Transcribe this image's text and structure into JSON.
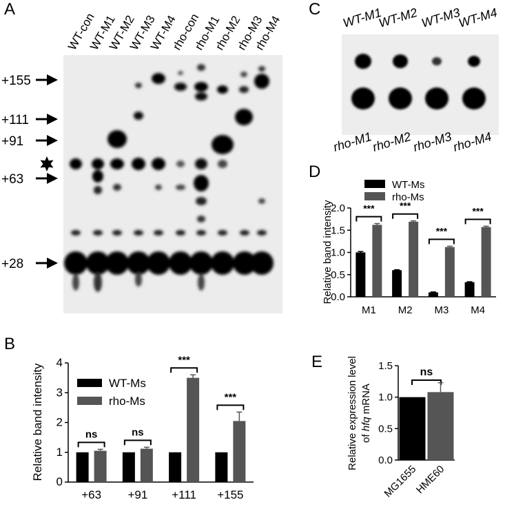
{
  "panels": {
    "a": {
      "letter": "A",
      "lane_labels": [
        "WT-con",
        "WT-M1",
        "WT-M2",
        "WT-M3",
        "WT-M4",
        "rho-con",
        "rho-M1",
        "rho-M2",
        "rho-M3",
        "rho-M4"
      ],
      "markers": [
        "+155",
        "+111",
        "+91",
        "+63",
        "+28"
      ],
      "star_icon": "star-icon"
    },
    "b": {
      "letter": "B",
      "chart_data": {
        "type": "bar",
        "categories": [
          "+63",
          "+91",
          "+111",
          "+155"
        ],
        "series": [
          {
            "name": "WT-Ms",
            "values": [
              1,
              1,
              1,
              1
            ],
            "errors": [
              0,
              0,
              0,
              0
            ],
            "color": "#000000"
          },
          {
            "name": "rho-Ms",
            "values": [
              1.05,
              1.12,
              3.5,
              2.05
            ],
            "errors": [
              0.05,
              0.05,
              0.1,
              0.3
            ],
            "color": "#555555"
          }
        ],
        "significance": [
          "ns",
          "ns",
          "***",
          "***"
        ],
        "ylabel": "Relative band intensity",
        "ylim": [
          0,
          4
        ],
        "yticks": [
          "0",
          "1",
          "2",
          "3",
          "4"
        ],
        "legend": "top-left"
      }
    },
    "c": {
      "letter": "C",
      "top_labels": [
        "WT-M1",
        "WT-M2",
        "WT-M3",
        "WT-M4"
      ],
      "bottom_labels": [
        "rho-M1",
        "rho-M2",
        "rho-M3",
        "rho-M4"
      ]
    },
    "d": {
      "letter": "D",
      "chart_data": {
        "type": "bar",
        "categories": [
          "M1",
          "M2",
          "M3",
          "M4"
        ],
        "series": [
          {
            "name": "WT-Ms",
            "values": [
              1.0,
              0.6,
              0.1,
              0.33
            ],
            "errors": [
              0.02,
              0.01,
              0.01,
              0.01
            ],
            "color": "#000000"
          },
          {
            "name": "rho-Ms",
            "values": [
              1.62,
              1.69,
              1.12,
              1.57
            ],
            "errors": [
              0.03,
              0.02,
              0.02,
              0.02
            ],
            "color": "#555555"
          }
        ],
        "significance": [
          "***",
          "***",
          "***",
          "***"
        ],
        "ylabel": "Relative band intensity",
        "ylim": [
          0,
          2.0
        ],
        "yticks": [
          "0.0",
          "0.5",
          "1.0",
          "1.5",
          "2.0"
        ],
        "legend": "top-left"
      }
    },
    "e": {
      "letter": "E",
      "chart_data": {
        "type": "bar",
        "categories": [
          "MG1655",
          "HME60"
        ],
        "series": [
          {
            "name": "",
            "values": [
              1.0,
              1.08
            ],
            "errors": [
              0,
              0.15
            ],
            "colors": [
              "#000000",
              "#555555"
            ]
          }
        ],
        "significance": [
          "ns"
        ],
        "ylabel_line1": "Relative expression level",
        "ylabel_line2_prefix": "of ",
        "ylabel_line2_italic": "hfq",
        "ylabel_line2_suffix": " mRNA",
        "ylim": [
          0,
          1.5
        ],
        "yticks": [
          "0.0",
          "0.5",
          "1.0",
          "1.5"
        ]
      }
    }
  }
}
